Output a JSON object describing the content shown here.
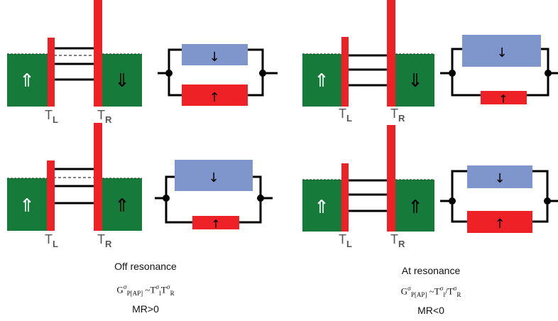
{
  "labels": {
    "t_left_letter": "T",
    "t_left_sub": "L",
    "t_right_letter": "T",
    "t_right_sub": "R"
  },
  "spin_arrows": {
    "up": "⇑",
    "down": "⇓",
    "small_up": "↑",
    "small_down": "↓"
  },
  "off_resonance": {
    "title": "Off resonance",
    "formula": {
      "g": "G",
      "sigma": "σ",
      "g_sub": "P[AP]",
      "tilde": " ~",
      "t1": "T",
      "t1_sub": "l",
      "t2": "T",
      "t2_sub": "R",
      "op": ""
    },
    "mr": "MR>0"
  },
  "at_resonance": {
    "title": "At resonance",
    "formula": {
      "g": "G",
      "sigma": "σ",
      "g_sub": "P[AP]",
      "tilde": " ~",
      "t1": "T",
      "t1_sub": "l",
      "t2": "T",
      "t2_sub": "R",
      "op": "/"
    },
    "mr": "MR<0"
  },
  "colors": {
    "green": "#167a3a",
    "red": "#ee2126",
    "blue": "#7f96cc",
    "wire": "#000000",
    "label_gray": "#555555"
  }
}
